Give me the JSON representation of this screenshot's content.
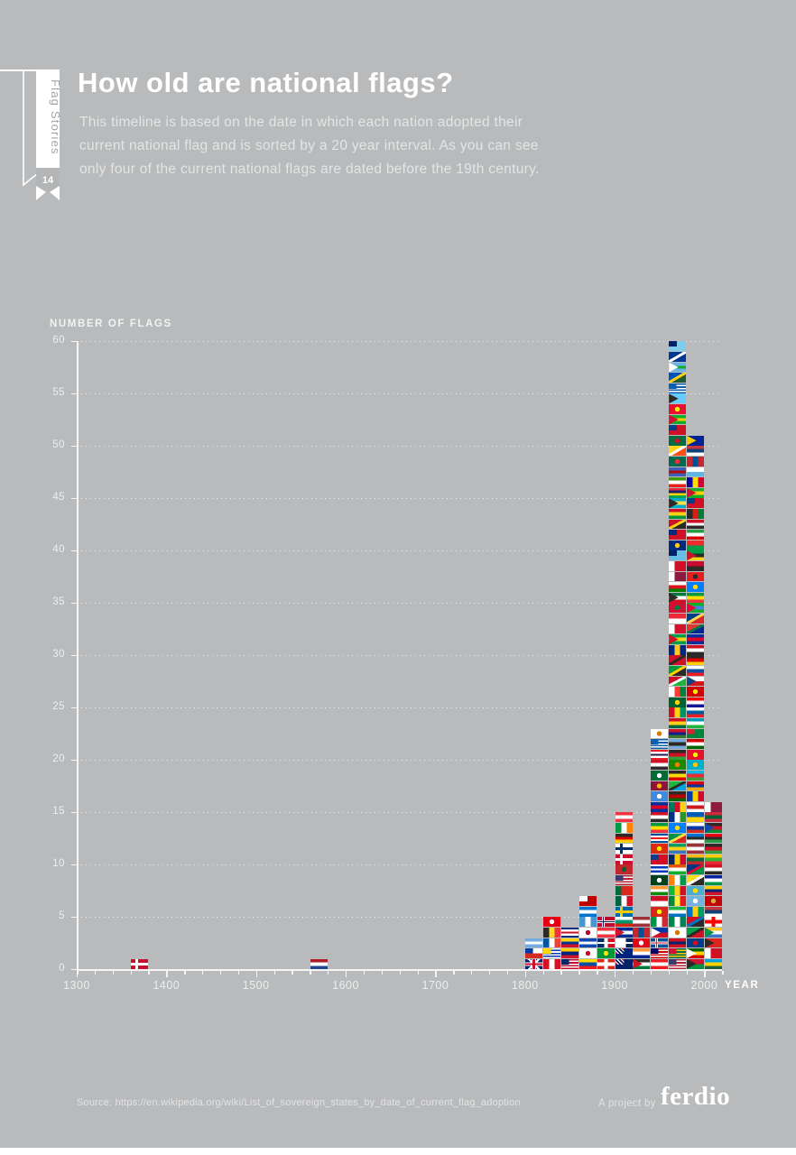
{
  "page": {
    "background": "#b8babc",
    "accent_white": "#ffffff"
  },
  "ribbon": {
    "series_label": "Flag Stories",
    "issue_number": "14"
  },
  "header": {
    "title": "How old are national flags?",
    "subtitle_lines": [
      "This timeline is based on the date in which each nation adopted their",
      "current national flag and is sorted by a 20 year interval. As you can see",
      "only four of the current national flags are dated before the 19th century."
    ]
  },
  "chart_data": {
    "type": "bar",
    "ylabel": "NUMBER OF FLAGS",
    "xlabel": "YEAR",
    "bin_years": 20,
    "x_axis": {
      "min": 1300,
      "max": 2020,
      "minor_tick_interval": 20,
      "labels": [
        1300,
        1400,
        1500,
        1600,
        1700,
        1800,
        1900,
        2000
      ]
    },
    "y_axis": {
      "min": 0,
      "max": 60,
      "tick_interval": 5,
      "labels": [
        0,
        5,
        10,
        15,
        20,
        25,
        30,
        35,
        40,
        45,
        50,
        55,
        60
      ]
    },
    "grid": "dotted-horizontal",
    "categories": [
      1360,
      1560,
      1800,
      1820,
      1840,
      1860,
      1880,
      1900,
      1920,
      1940,
      1960,
      1980,
      2000
    ],
    "values": [
      1,
      1,
      3,
      5,
      4,
      7,
      5,
      15,
      5,
      23,
      60,
      51,
      16
    ],
    "bars": [
      {
        "year": 1360,
        "count": 1,
        "flags": [
          "c:#c8102e,#ffffff"
        ]
      },
      {
        "year": 1560,
        "count": 1,
        "flags": [
          "h:#ae1c28,#ffffff,#21468b"
        ]
      },
      {
        "year": 1800,
        "count": 3,
        "flags": [
          "uj:#012169,#ffffff,#c8102e",
          "h2q:#ffffff,#d52b1e,#0039a6",
          "h:#74acdf,#ffffff,#74acdf"
        ]
      },
      {
        "year": 1820,
        "count": 5,
        "flags": [
          "v:#d91023,#ffffff,#d91023",
          "st:#ffffff,#0038a8,#ffd700",
          "v:#0055a4,#ffffff,#ef4135",
          "v:#2d2926,#fdda24,#ef3340",
          "s:#e70013,#ffffff"
        ]
      },
      {
        "year": 1840,
        "count": 4,
        "flags": [
          "st:#bf0a30,#ffffff,#002868",
          "h:#ffcc00,#00247d,#cf142b",
          "h:#fcd116,#003893,#ce1126",
          "h:#002b7f,#ffffff,#ce1126,#ffffff,#002b7f"
        ]
      },
      {
        "year": 1860,
        "count": 7,
        "flags": [
          "h:#ffdd00,#034ea2,#ed1c24",
          "s:#ffffff,#c60c30",
          "h:#0f47af,#ffffff,#0f47af",
          "s:#ffffff,#bc002d",
          "v:#4997d0,#ffffff,#4997d0",
          "h:#0073cf,#ffffff,#0073cf",
          "q:#c10000,#ffffff"
        ]
      },
      {
        "year": 1880,
        "count": 5,
        "flags": [
          "x:#da291c,#ffffff",
          "s:#009739,#fedd00",
          "dr:#002d62,#ce1126",
          "h:#ef3340,#ffffff,#ef3340",
          "c:#ba0c2f,#ffffff,#00205b"
        ]
      },
      {
        "year": 1900,
        "count": 15,
        "flags": [
          "uq:#012169",
          "uq:#00247d",
          "dr:#ffffff,#072357",
          "t:#cf142b,#002a8f,#ffffff,#002a8f",
          "h:#ffffff,#00966e,#d62612",
          "c:#006aa7,#fecc02",
          "v:#006341,#ffffff,#ce1126",
          "v2:#046a38,#da291c",
          "st:#b22234,#ffffff,#3c3b6e",
          "s:#c1272d,#006233",
          "c:#c8102e,#ffffff",
          "c:#ffffff,#002f6c",
          "h:#2d2926,#dd0000,#ffce00",
          "v:#009a44,#ffffff,#ff8200",
          "h:#ef3340,#ffffff,#ef3340"
        ]
      },
      {
        "year": 1920,
        "count": 5,
        "flags": [
          "t:#ce1126,#2d2926,#ffffff,#007a3d",
          "h:#ff9933,#ffffff,#002395",
          "s:#e30a17,#ffffff",
          "v:#c4272f,#015197,#c4272f",
          "h:#9e3039,#ffffff,#9e3039"
        ]
      },
      {
        "year": 1940,
        "count": 23,
        "flags": [
          "h:#ed1c24,#ffffff,#ed1c24",
          "st:#cc0001,#ffffff,#010066",
          "c:#02529c,#ffffff,#dc1e35",
          "t:#ffffff,#0038a8,#ce1126",
          "v:#009246,#ffffff,#ce2b37",
          "s:#da251d,#ffff00",
          "h2:#ce1126,#ffffff",
          "h:#ff9933,#ffffff,#138808",
          "s:#01411c,#ffffff",
          "h:#ffffff,#0038b8,#ffffff,#0038b8,#ffffff",
          "q:#ce1126,#123a93",
          "s:#de2910,#ffde00",
          "h:#024fa2,#ffffff,#ed1c27,#ffffff,#024fa2",
          "h:#009a44,#fedd00,#ef3340",
          "h:#ce1126,#ffffff,#2d2926",
          "h:#032ea1,#e00025,#032ea1",
          "s:#4189dd,#ffffff",
          "s:#8d153a,#ffb700",
          "s:#006c35,#ffffff",
          "h:#ce1126,#ffffff,#2d2926",
          "h:#ed1c24,#ffffff,#241d4f,#ffffff,#ed1c24",
          "st:#0d5eaf,#ffffff,#0d5eaf",
          "s:#ffffff,#d57800"
        ]
      },
      {
        "year": 1960,
        "count": 60,
        "flags": [
          "st:#b22234,#ffffff,#3c3b6e",
          "st:#006a4e,#ffce00,#d21034",
          "h:#ce1126,#002868,#ce1126",
          "s:#ffffff,#d57800",
          "v:#008751,#ffffff,#008751",
          "h:#1eb53a,#ffffff,#0072c6",
          "v:#00853f,#fdef42,#e31b23",
          "v:#14b53a,#fcd116,#ce1126",
          "v:#ff8200,#ffffff,#009a44",
          "h:#e05206,#ffffff,#0db02b",
          "v:#002664,#ffcb00,#c60c30",
          "h:#009e60,#fcd116,#3a75c4",
          "d:#009543,#fbde4a,#dc241f",
          "s:#007fff,#f7d618",
          "v:#003082,#ffffff,#289728",
          "v:#007a5e,#ce1126,#fcd116",
          "h:#2d2926,#bb0000,#006600",
          "d:#1eb53a,#2d2926,#00a3dd",
          "h:#2d2926,#fcdc04,#d90000",
          "s:#198a00,#ef7d00",
          "h:#2d2926,#ce1126,#339e35",
          "h:#75aadb,#2d2926,#75aadb",
          "h:#ce1126,#0c1c8c,#3a7728",
          "h:#ce1126,#fcd116,#006b3f",
          "v:#ce1126,#fcd116,#009460",
          "s:#006233,#ffd700",
          "v:#ffffff,#fc3d32,#007e3a",
          "d:#ce1126,#ffffff,#1eb53a",
          "d:#009b3a,#fed100,#2d2926",
          "d:#ce1126,#2d2926,#ce1126",
          "v:#00267f,#ffc726,#00267f",
          "t:#ce1126,#009e49,#fcd116,#009e49",
          "v2:#ffffff,#cf142b",
          "h2:#ed2939,#ffffff",
          "s:#d21034,#007e3a",
          "t:#2d2926,#007a3d,#ffffff,#ce1126",
          "h:#ffffff,#db161b,#008000",
          "v2:#ffffff,#8d1b3d",
          "v2:#ffffff,#ce1126",
          "q:#68bfe5,#012169",
          "s:#002b7f,#ffc61e",
          "q:#ce1126,#002b7f",
          "d:#ce1126,#fcd116,#2d2926",
          "h:#ce1126,#fcd116,#009739",
          "t:#2d2926,#00abc9,#fae042,#00abc9",
          "h:#ea2839,#1a206d,#ffd500,#00a551",
          "h:#3e9a00,#ffffff,#e32118",
          "h:#3e5eb9,#b10c0c,#3e5eb9",
          "s:#006a4e,#f42a41",
          "d:#ffd520,#ffffff,#ff4e12",
          "s:#006b3f,#ce1126",
          "q:#ce1126,#003f87",
          "t:#d21034,#12ad2b,#ffce00,#12ad2b",
          "s:#e8112d,#ffef00",
          "t:#2d2926,#66ccff,#66ccff,#66ccff",
          "st:#0d5eaf,#ffffff,#0d5eaf",
          "d:#0051ba,#fcd116,#215b33",
          "t:#ffffff,#6ab2e7,#12ad2b,#6ab2e7",
          "d:#003893,#ffffff,#003893",
          "q:#7fccec,#012169"
        ]
      },
      {
        "year": 1980,
        "count": 51,
        "flags": [
          "t:#2d2926,#d21034,#009543",
          "t:#ffffff,#006400,#ffd200,#d40000",
          "s:#003f87,#ce1126",
          "d:#009e49,#2d2926,#ce1126",
          "d:#ce1126,#0072c6,#2d2926",
          "v:#0072c6,#fcd116,#009e60",
          "s:#75b2dd,#ffffff",
          "s:#4aadd6,#ffde00",
          "d:#f7e017,#ffffff,#2d2926",
          "d:#003580,#d21034,#009543",
          "h:#fdb913,#006a44,#c1272d",
          "h:#9e3039,#ffffff,#9e3039",
          "h:#0072ce,#2d2926,#ffffff",
          "h:#ffffff,#0039a6,#d52b1e",
          "h2:#005bbb,#ffd500",
          "h:#ffffff,#ce1720,#ffffff",
          "v:#003da5,#ffd200,#cc092f",
          "h:#d90012,#0033a0,#f2a800",
          "h:#00b9e4,#ed2939,#3f9c35",
          "s:#00afca,#fec50c",
          "s:#e8112d,#ffef00",
          "h:#cc0000,#ffffff,#006600",
          "q:#00843d,#d22630",
          "h:#0099b5,#ffffff,#1eb53a",
          "h:#ffffff,#005da4,#ed1c24",
          "h:#ff0000,#ffffff,#171796",
          "s:#d20000,#ffe600",
          "t:#11457e,#ffffff,#d7141a",
          "h:#ffffff,#0b4ea2,#ee1c25",
          "h:#2d2926,#dd0000,#ffce00",
          "h:#ce1126,#ffffff,#2d2926",
          "h:#032ea1,#e00025,#032ea1",
          "d:#de3831,#007a4d,#002395",
          "d:#003f87,#fcd856,#d62828",
          "t:#ea0437,#12ad2b,#4189dd,#12ad2b",
          "h:#009a44,#fedd00,#ef3340",
          "s:#007fff,#f7d618",
          "s:#e41e20,#2d2926",
          "h2:#cc092f,#2d2926",
          "t:#ce1126,#009a44,#2d2926,#fcd116",
          "h2:#ef2b2d,#009e49",
          "h:#239f40,#ffffff,#da0000",
          "h:#ce1126,#ffffff,#2d2926",
          "v:#2d2926,#d32011,#007a36",
          "q:#ce1126,#003f87",
          "t:#d21034,#12ad2b,#ffce00,#12ad2b",
          "v:#10069f,#fedd00,#d50032",
          "h2:#ffffff,#5eb6e4",
          "v:#c4272f,#015197,#c4272f",
          "h:#c6363c,#0c4076,#ffffff",
          "t:#fecb00,#002395,#002395"
        ]
      },
      {
        "year": 2000,
        "count": 16,
        "flags": [
          "h:#00a1de,#fad201,#20603d",
          "v2:#ffffff,#ce1126",
          "t:#2d2926,#dc241f,#dc241f",
          "t:#009543,#ffc61e,#ffffff,#3a75c4",
          "x:#ffffff,#ff0000",
          "h:#c6363c,#0c4076,#ffffff",
          "s:#c40308,#d3ae3b",
          "h:#ffcc00,#00247d,#cf142b",
          "h:#00209f,#ffffff,#009543",
          "h:#ce1126,#ffffff,#2d2926",
          "h:#fecb00,#34b233,#ea2839",
          "h:#2d2926,#ce1126,#339e35",
          "h:#e70013,#2d2926,#239e46",
          "t:#0f47af,#2d2926,#ce1126,#078930",
          "h:#cd2a3e,#006233,#cd2a3e",
          "v2:#ffffff,#8d1b3d"
        ]
      }
    ]
  },
  "footer": {
    "source": "Source: https://en.wikipedia.org/wiki/List_of_sovereign_states_by_date_of_current_flag_adoption",
    "project_label": "A project by",
    "brand": "ferdio"
  }
}
